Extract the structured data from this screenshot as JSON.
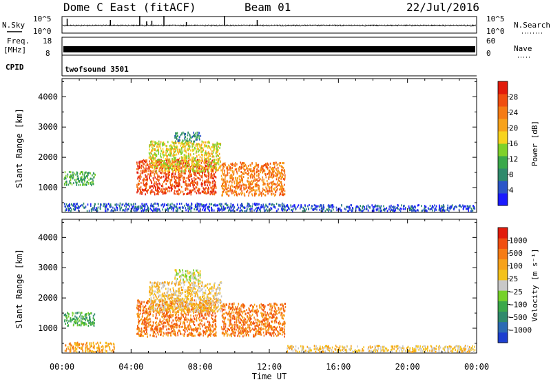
{
  "header": {
    "station": "Dome C East (fitACF)",
    "beam": "Beam 01",
    "date": "22/Jul/2016"
  },
  "noise_panel": {
    "left_label": "N.Sky",
    "right_label": "N.Search",
    "left_ticks": [
      "10^5",
      "10^0"
    ],
    "right_ticks": [
      "10^5",
      "10^0"
    ]
  },
  "freq_panel": {
    "left_label_1": "Freq.",
    "left_label_2": "[MHz]",
    "right_label": "Nave",
    "left_ticks": [
      "18",
      "8"
    ],
    "right_ticks": [
      "60",
      "0"
    ]
  },
  "cpid_panel": {
    "label": "CPID",
    "program": "twofsound 3501"
  },
  "chart_data": [
    {
      "type": "heatmap",
      "title": "",
      "ylabel": "Slant Range [km]",
      "ylim": [
        180,
        4600
      ],
      "yticks": [
        1000,
        2000,
        3000,
        4000
      ],
      "xlabel": "Time UT",
      "xlim": [
        0,
        24
      ],
      "xtick_labels": [
        "00:00",
        "04:00",
        "08:00",
        "12:00",
        "16:00",
        "20:00",
        "00:00"
      ],
      "colorbar": {
        "label": "Power [dB]",
        "ticks": [
          "4",
          "8",
          "12",
          "16",
          "20",
          "24",
          "28"
        ],
        "colors": [
          "#1a1aff",
          "#2b55c8",
          "#2f8a6c",
          "#3aa84a",
          "#7fd12a",
          "#f7d31e",
          "#f7a21a",
          "#f57b14",
          "#f04e10",
          "#e21b0b"
        ]
      },
      "regions": [
        {
          "t0": 0.1,
          "t1": 1.9,
          "r0": 1050,
          "r1": 1500,
          "level": 3
        },
        {
          "t0": 4.3,
          "t1": 8.9,
          "r0": 750,
          "r1": 1900,
          "level": 8
        },
        {
          "t0": 5.0,
          "t1": 9.2,
          "r0": 1500,
          "r1": 2500,
          "level": 5
        },
        {
          "t0": 9.2,
          "t1": 12.9,
          "r0": 700,
          "r1": 1800,
          "level": 7
        },
        {
          "t0": 6.5,
          "t1": 8.0,
          "r0": 2500,
          "r1": 2800,
          "level": 2
        },
        {
          "t0": 0.1,
          "t1": 13.0,
          "r0": 190,
          "r1": 450,
          "level": 1
        },
        {
          "t0": 13.0,
          "t1": 23.9,
          "r0": 190,
          "r1": 400,
          "level": 1
        }
      ]
    },
    {
      "type": "heatmap",
      "title": "",
      "ylabel": "Slant Range [km]",
      "ylim": [
        180,
        4600
      ],
      "yticks": [
        1000,
        2000,
        3000,
        4000
      ],
      "xlabel": "Time UT",
      "xlim": [
        0,
        24
      ],
      "xtick_labels": [
        "00:00",
        "04:00",
        "08:00",
        "12:00",
        "16:00",
        "20:00",
        "00:00"
      ],
      "colorbar": {
        "label": "Velocity [m s⁻¹]",
        "ticks": [
          "1000",
          "500",
          "100",
          "25",
          "−25",
          "−100",
          "−500",
          "−1000"
        ],
        "colors": [
          "#1d3fd0",
          "#2b6ab4",
          "#2f8a6c",
          "#3aa84a",
          "#76d12a",
          "#c8c8c8",
          "#f4c21c",
          "#f7a21a",
          "#f57b14",
          "#f04e10",
          "#e21b0b"
        ]
      },
      "regions": [
        {
          "t0": 0.1,
          "t1": 1.9,
          "r0": 1050,
          "r1": 1500,
          "level": 3
        },
        {
          "t0": 4.3,
          "t1": 8.9,
          "r0": 700,
          "r1": 1900,
          "level": 8
        },
        {
          "t0": 5.0,
          "t1": 9.2,
          "r0": 1500,
          "r1": 2500,
          "level": 6
        },
        {
          "t0": 9.2,
          "t1": 12.9,
          "r0": 700,
          "r1": 1800,
          "level": 8
        },
        {
          "t0": 6.5,
          "t1": 8.0,
          "r0": 2500,
          "r1": 2900,
          "level": 5
        },
        {
          "t0": 0.1,
          "t1": 3.0,
          "r0": 190,
          "r1": 500,
          "level": 7
        },
        {
          "t0": 13.0,
          "t1": 23.9,
          "r0": 190,
          "r1": 400,
          "level": 6
        }
      ]
    }
  ]
}
